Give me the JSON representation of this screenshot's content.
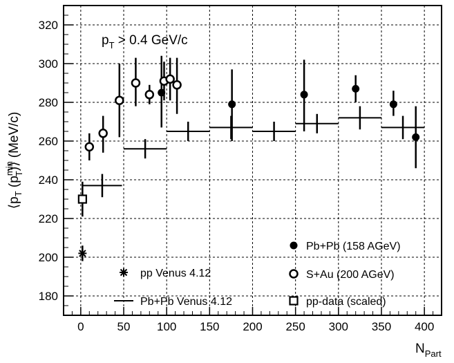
{
  "chart_data": {
    "type": "scatter",
    "xlim": [
      -20,
      420
    ],
    "ylim": [
      170,
      330
    ],
    "x_ticks": [
      0,
      50,
      100,
      150,
      200,
      250,
      300,
      350,
      400
    ],
    "y_ticks": [
      180,
      200,
      220,
      240,
      260,
      280,
      300,
      320
    ],
    "grid": true,
    "xlabel": {
      "main": "N",
      "sub": "Part"
    },
    "ylabel": {
      "pre": "⟨p",
      "sub1": "T",
      "mid": " (p",
      "sup2": "min",
      "sub2": "T",
      "post": ")⟩ (MeV/c)"
    },
    "annotation": {
      "main": "p",
      "sub": "T",
      "rest": " > 0.4 GeV/c"
    },
    "series": [
      {
        "name": "Pb+Pb (158 AGeV)",
        "marker": "filled-circle",
        "points": [
          {
            "x": 94,
            "y": 285,
            "ylo": 267,
            "yhi": 304
          },
          {
            "x": 176,
            "y": 279,
            "ylo": 260,
            "yhi": 297
          },
          {
            "x": 260,
            "y": 284,
            "ylo": 265,
            "yhi": 302
          },
          {
            "x": 320,
            "y": 287,
            "ylo": 280,
            "yhi": 294
          },
          {
            "x": 364,
            "y": 279,
            "ylo": 273,
            "yhi": 286
          },
          {
            "x": 390,
            "y": 262,
            "ylo": 246,
            "yhi": 278
          }
        ]
      },
      {
        "name": "S+Au  (200 AGeV)",
        "marker": "open-circle",
        "points": [
          {
            "x": 10,
            "y": 257,
            "ylo": 250,
            "yhi": 264
          },
          {
            "x": 26,
            "y": 264,
            "ylo": 254,
            "yhi": 273
          },
          {
            "x": 45,
            "y": 281,
            "ylo": 262,
            "yhi": 300
          },
          {
            "x": 64,
            "y": 290,
            "ylo": 278,
            "yhi": 303
          },
          {
            "x": 80,
            "y": 284,
            "ylo": 279,
            "yhi": 289
          },
          {
            "x": 97,
            "y": 291,
            "ylo": 281,
            "yhi": 301
          },
          {
            "x": 104,
            "y": 292,
            "ylo": 281,
            "yhi": 303
          },
          {
            "x": 112,
            "y": 289,
            "ylo": 274,
            "yhi": 303
          }
        ]
      },
      {
        "name": "pp-data (scaled)",
        "marker": "open-square",
        "points": [
          {
            "x": 2,
            "y": 230,
            "ylo": 221,
            "yhi": 239
          }
        ]
      },
      {
        "name": "pp  Venus 4.12",
        "marker": "star",
        "points": [
          {
            "x": 2,
            "y": 202,
            "ylo": 198,
            "yhi": 206
          }
        ]
      },
      {
        "name": "Pb+Pb  Venus 4.12",
        "marker": "horizontal-bar",
        "points": [
          {
            "x": 25,
            "xlo": 2,
            "xhi": 48,
            "y": 237,
            "ylo": 231,
            "yhi": 243
          },
          {
            "x": 75,
            "xlo": 50,
            "xhi": 100,
            "y": 256,
            "ylo": 251,
            "yhi": 261
          },
          {
            "x": 125,
            "xlo": 100,
            "xhi": 150,
            "y": 265,
            "ylo": 260,
            "yhi": 270
          },
          {
            "x": 175,
            "xlo": 150,
            "xhi": 200,
            "y": 267,
            "ylo": 261,
            "yhi": 273
          },
          {
            "x": 225,
            "xlo": 200,
            "xhi": 250,
            "y": 265,
            "ylo": 260,
            "yhi": 270
          },
          {
            "x": 275,
            "xlo": 250,
            "xhi": 300,
            "y": 269,
            "ylo": 264,
            "yhi": 274
          },
          {
            "x": 325,
            "xlo": 300,
            "xhi": 350,
            "y": 272,
            "ylo": 266,
            "yhi": 278
          },
          {
            "x": 375,
            "xlo": 350,
            "xhi": 400,
            "y": 267,
            "ylo": 261,
            "yhi": 273
          }
        ]
      }
    ],
    "legend": [
      {
        "series": "Pb+Pb (158 AGeV)",
        "label": "Pb+Pb (158 AGeV)"
      },
      {
        "series": "S+Au  (200 AGeV)",
        "label": "S+Au  (200 AGeV)"
      },
      {
        "series": "pp-data (scaled)",
        "label": "pp-data (scaled)"
      },
      {
        "series": "pp  Venus 4.12",
        "label": "pp  Venus 4.12"
      },
      {
        "series": "Pb+Pb  Venus 4.12",
        "label": "Pb+Pb  Venus 4.12"
      }
    ]
  }
}
